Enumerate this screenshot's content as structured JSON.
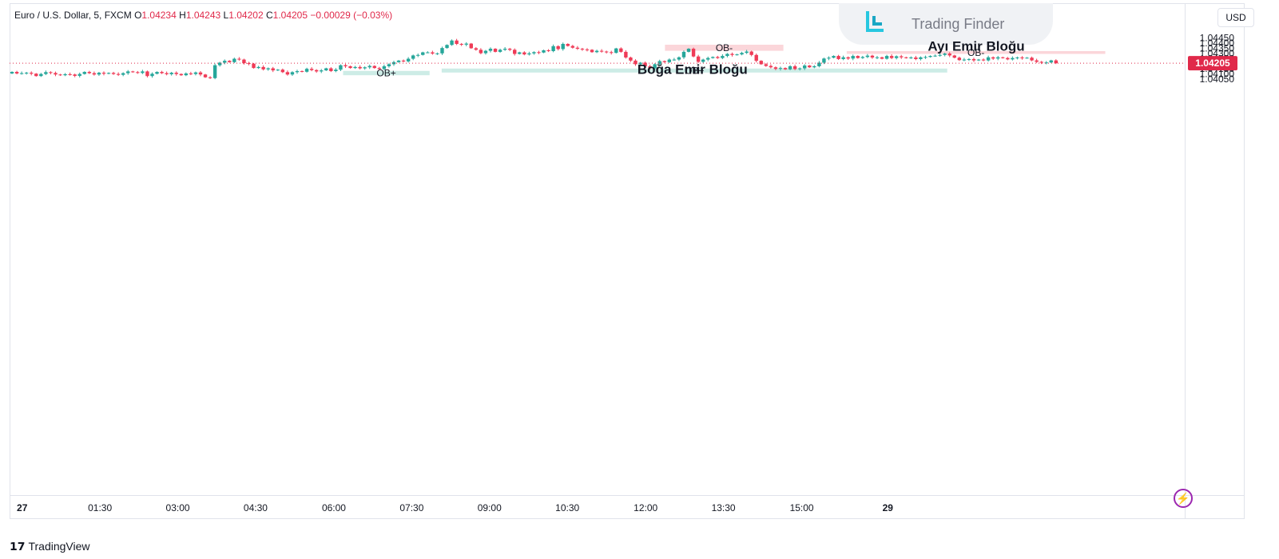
{
  "legend": {
    "symbol": "Euro / U.S. Dollar, 5, FXCM",
    "o_label": "O",
    "o_value": "1.04234",
    "h_label": "H",
    "h_value": "1.04243",
    "l_label": "L",
    "l_value": "1.04202",
    "c_label": "C",
    "c_value": "1.04205",
    "change": "−0.00029 (−0.03%)"
  },
  "branding": {
    "trading_finder": "Trading Finder",
    "tradingview": "TradingView"
  },
  "currency": "USD",
  "colors": {
    "up": "#26a69a",
    "down": "#ef3b57",
    "bull_zone": "#cdece6",
    "bear_zone": "#fbd6da",
    "price_line": "#e0294a"
  },
  "chart_data": {
    "type": "candlestick",
    "symbol": "EURUSD",
    "timeframe": "5",
    "y_range": [
      1.0401,
      1.0447
    ],
    "y_ticks": [
      "1.04450",
      "1.04400",
      "1.04350",
      "1.04300",
      "1.04250",
      "1.04200",
      "1.04150",
      "1.04100",
      "1.04050"
    ],
    "x_ticks": [
      {
        "label": "27",
        "t": 2.1
      },
      {
        "label": "01:30",
        "t": 18.2
      },
      {
        "label": "03:00",
        "t": 34.3
      },
      {
        "label": "04:30",
        "t": 50.4
      },
      {
        "label": "06:00",
        "t": 66.6
      },
      {
        "label": "07:30",
        "t": 82.7
      },
      {
        "label": "09:00",
        "t": 98.8
      },
      {
        "label": "10:30",
        "t": 114.9
      },
      {
        "label": "12:00",
        "t": 131.1
      },
      {
        "label": "13:30",
        "t": 147.2
      },
      {
        "label": "15:00",
        "t": 163.4
      },
      {
        "label": "29",
        "t": 181.2
      }
    ],
    "last_price": "1.04205",
    "last_price_value": 1.04205,
    "closes": [
      1.0412,
      1.04105,
      1.04108,
      1.04112,
      1.04103,
      1.0408,
      1.041,
      1.04118,
      1.0411,
      1.04095,
      1.04088,
      1.04098,
      1.04095,
      1.04082,
      1.041,
      1.0412,
      1.04108,
      1.04095,
      1.04112,
      1.04103,
      1.0411,
      1.041,
      1.04092,
      1.04108,
      1.04125,
      1.04118,
      1.0411,
      1.04125,
      1.0408,
      1.04102,
      1.0412,
      1.04108,
      1.04098,
      1.04112,
      1.041,
      1.04088,
      1.04105,
      1.041,
      1.04115,
      1.04095,
      1.04068,
      1.0406,
      1.04185,
      1.0421,
      1.04228,
      1.04215,
      1.04248,
      1.0424,
      1.04205,
      1.042,
      1.04158,
      1.04168,
      1.04145,
      1.04155,
      1.04135,
      1.04142,
      1.04118,
      1.04095,
      1.04118,
      1.04128,
      1.04122,
      1.0415,
      1.04138,
      1.04125,
      1.04135,
      1.04155,
      1.04128,
      1.04142,
      1.04185,
      1.04175,
      1.04158,
      1.04168,
      1.04155,
      1.04165,
      1.04178,
      1.04158,
      1.04148,
      1.04175,
      1.04195,
      1.04215,
      1.0423,
      1.04222,
      1.04248,
      1.0428,
      1.04285,
      1.0431,
      1.0431,
      1.04298,
      1.043,
      1.04352,
      1.04382,
      1.04425,
      1.04392,
      1.04385,
      1.04395,
      1.0435,
      1.04335,
      1.04302,
      1.04325,
      1.04345,
      1.04315,
      1.04335,
      1.04345,
      1.04335,
      1.04295,
      1.0431,
      1.0429,
      1.043,
      1.04312,
      1.04308,
      1.0433,
      1.04322,
      1.0437,
      1.04342,
      1.04392,
      1.04372,
      1.04355,
      1.04345,
      1.04338,
      1.04335,
      1.04312,
      1.04325,
      1.04318,
      1.04312,
      1.04305,
      1.04348,
      1.04315,
      1.0426,
      1.0423,
      1.04195,
      1.0421,
      1.04175,
      1.04155,
      1.04195,
      1.04225,
      1.04215,
      1.0424,
      1.0424,
      1.04262,
      1.04315,
      1.04345,
      1.0427,
      1.04218,
      1.0424,
      1.04255,
      1.04265,
      1.04255,
      1.04275,
      1.04295,
      1.04285,
      1.0429,
      1.04305,
      1.04318,
      1.04285,
      1.04228,
      1.04195,
      1.04178,
      1.04165,
      1.0415,
      1.04158,
      1.04145,
      1.04175,
      1.04148,
      1.04155,
      1.04182,
      1.04165,
      1.04175,
      1.0421,
      1.0425,
      1.04258,
      1.04275,
      1.04245,
      1.04262,
      1.0425,
      1.04275,
      1.04255,
      1.04265,
      1.04278,
      1.0426,
      1.04262,
      1.04248,
      1.04275,
      1.04255,
      1.04272,
      1.04262,
      1.04255,
      1.0426,
      1.04245,
      1.04262,
      1.04265,
      1.04275,
      1.04278,
      1.04285,
      1.04298,
      1.0428,
      1.04258,
      1.04235,
      1.0424,
      1.04245,
      1.04232,
      1.0424,
      1.04232,
      1.04262,
      1.0425,
      1.04262,
      1.04255,
      1.04242,
      1.04255,
      1.0426,
      1.04255,
      1.04258,
      1.04232,
      1.04218,
      1.0421,
      1.04212,
      1.04232,
      1.04205
    ],
    "order_blocks": [
      {
        "kind": "bullish",
        "label": "OB+",
        "t_start": 68.5,
        "t_end": 86.4,
        "price_top": 1.0413,
        "price_bottom": 1.04088
      },
      {
        "kind": "bullish",
        "label": "OB+",
        "t_start": 88.9,
        "t_end": 193.5,
        "price_top": 1.04153,
        "price_bottom": 1.04114
      },
      {
        "kind": "bearish",
        "label": "OB-",
        "t_start": 135.1,
        "t_end": 159.6,
        "price_top": 1.04384,
        "price_bottom": 1.04325
      },
      {
        "kind": "bearish",
        "label": "OB-",
        "t_start": 172.7,
        "t_end": 226.2,
        "price_top": 1.04322,
        "price_bottom": 1.04295
      }
    ],
    "annotations": [
      {
        "text": "Ayı Emir Bloğu",
        "t": 199.5,
        "price": 1.04326
      },
      {
        "text": "Boğa Emir Bloğu",
        "t": 140.8,
        "price": 1.04103
      }
    ]
  }
}
